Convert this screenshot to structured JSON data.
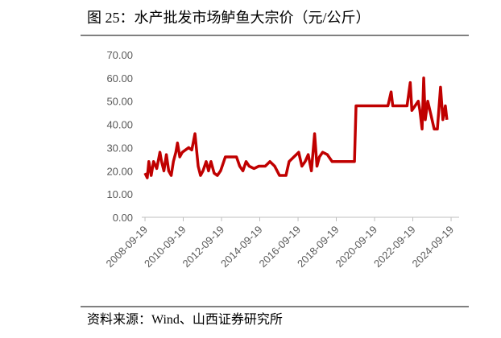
{
  "chart_data": {
    "type": "line",
    "title": "图 25：水产批发市场鲈鱼大宗价（元/公斤）",
    "source": "资料来源：Wind、山西证券研究所",
    "x": [
      "2008-09-19",
      "2008-11-01",
      "2008-12-01",
      "2009-01-15",
      "2009-03-01",
      "2009-05-01",
      "2009-07-01",
      "2009-08-01",
      "2009-09-15",
      "2009-11-01",
      "2009-12-15",
      "2010-02-01",
      "2010-03-15",
      "2010-05-01",
      "2010-06-01",
      "2010-07-15",
      "2010-09-01",
      "2010-11-01",
      "2011-01-01",
      "2011-03-01",
      "2011-05-01",
      "2011-07-01",
      "2011-08-15",
      "2011-10-01",
      "2011-12-01",
      "2012-01-15",
      "2012-03-01",
      "2012-05-01",
      "2012-07-01",
      "2012-09-01",
      "2012-12-01",
      "2013-03-01",
      "2013-07-01",
      "2013-09-01",
      "2013-11-01",
      "2014-01-01",
      "2014-03-01",
      "2014-06-01",
      "2014-09-01",
      "2015-01-01",
      "2015-04-01",
      "2015-07-01",
      "2015-10-01",
      "2016-02-01",
      "2016-04-01",
      "2016-07-01",
      "2016-10-01",
      "2016-12-01",
      "2017-02-01",
      "2017-04-01",
      "2017-06-01",
      "2017-08-01",
      "2017-09-15",
      "2017-11-01",
      "2018-01-01",
      "2018-04-01",
      "2018-07-01",
      "2019-01-01",
      "2019-09-01",
      "2019-10-01",
      "2020-06-01",
      "2021-06-01",
      "2021-08-01",
      "2021-09-01",
      "2022-06-01",
      "2022-08-01",
      "2022-09-01",
      "2023-01-01",
      "2023-02-01",
      "2023-03-15",
      "2023-04-15",
      "2023-05-15",
      "2023-07-01",
      "2023-09-01",
      "2023-11-01",
      "2024-01-01",
      "2024-03-01",
      "2024-04-15",
      "2024-06-01",
      "2024-07-01"
    ],
    "series": [
      {
        "name": "鲈鱼大宗价",
        "color": "#c00000",
        "values": [
          19,
          17,
          24,
          18,
          24,
          21,
          28,
          24,
          20,
          27,
          20,
          18,
          24,
          28,
          32,
          26,
          28,
          29,
          30,
          29,
          36,
          22,
          18,
          20,
          24,
          20,
          24,
          19,
          18,
          20,
          26,
          26,
          26,
          22,
          20,
          24,
          22,
          21,
          22,
          22,
          24,
          22,
          18,
          18,
          24,
          26,
          28,
          22,
          24,
          27,
          20,
          36,
          22,
          26,
          28,
          27,
          24,
          24,
          24,
          48,
          48,
          48,
          54,
          48,
          48,
          58,
          46,
          50,
          46,
          38,
          60,
          42,
          50,
          44,
          38,
          38,
          56,
          42,
          48,
          42
        ]
      }
    ],
    "xlim": [
      "2008-07-19",
      "2025-02-19"
    ],
    "xticks": [
      "2008-09-19",
      "2010-09-19",
      "2012-09-19",
      "2014-09-19",
      "2016-09-19",
      "2018-09-19",
      "2020-09-19",
      "2022-09-19",
      "2024-09-19"
    ],
    "ylim": [
      0,
      70
    ],
    "yticks": [
      {
        "value": 0,
        "label": "0.00"
      },
      {
        "value": 10,
        "label": "10.00"
      },
      {
        "value": 20,
        "label": "20.00"
      },
      {
        "value": 30,
        "label": "30.00"
      },
      {
        "value": 40,
        "label": "40.00"
      },
      {
        "value": 50,
        "label": "50.00"
      },
      {
        "value": 60,
        "label": "60.00"
      },
      {
        "value": 70,
        "label": "70.00"
      }
    ],
    "grid": false
  }
}
